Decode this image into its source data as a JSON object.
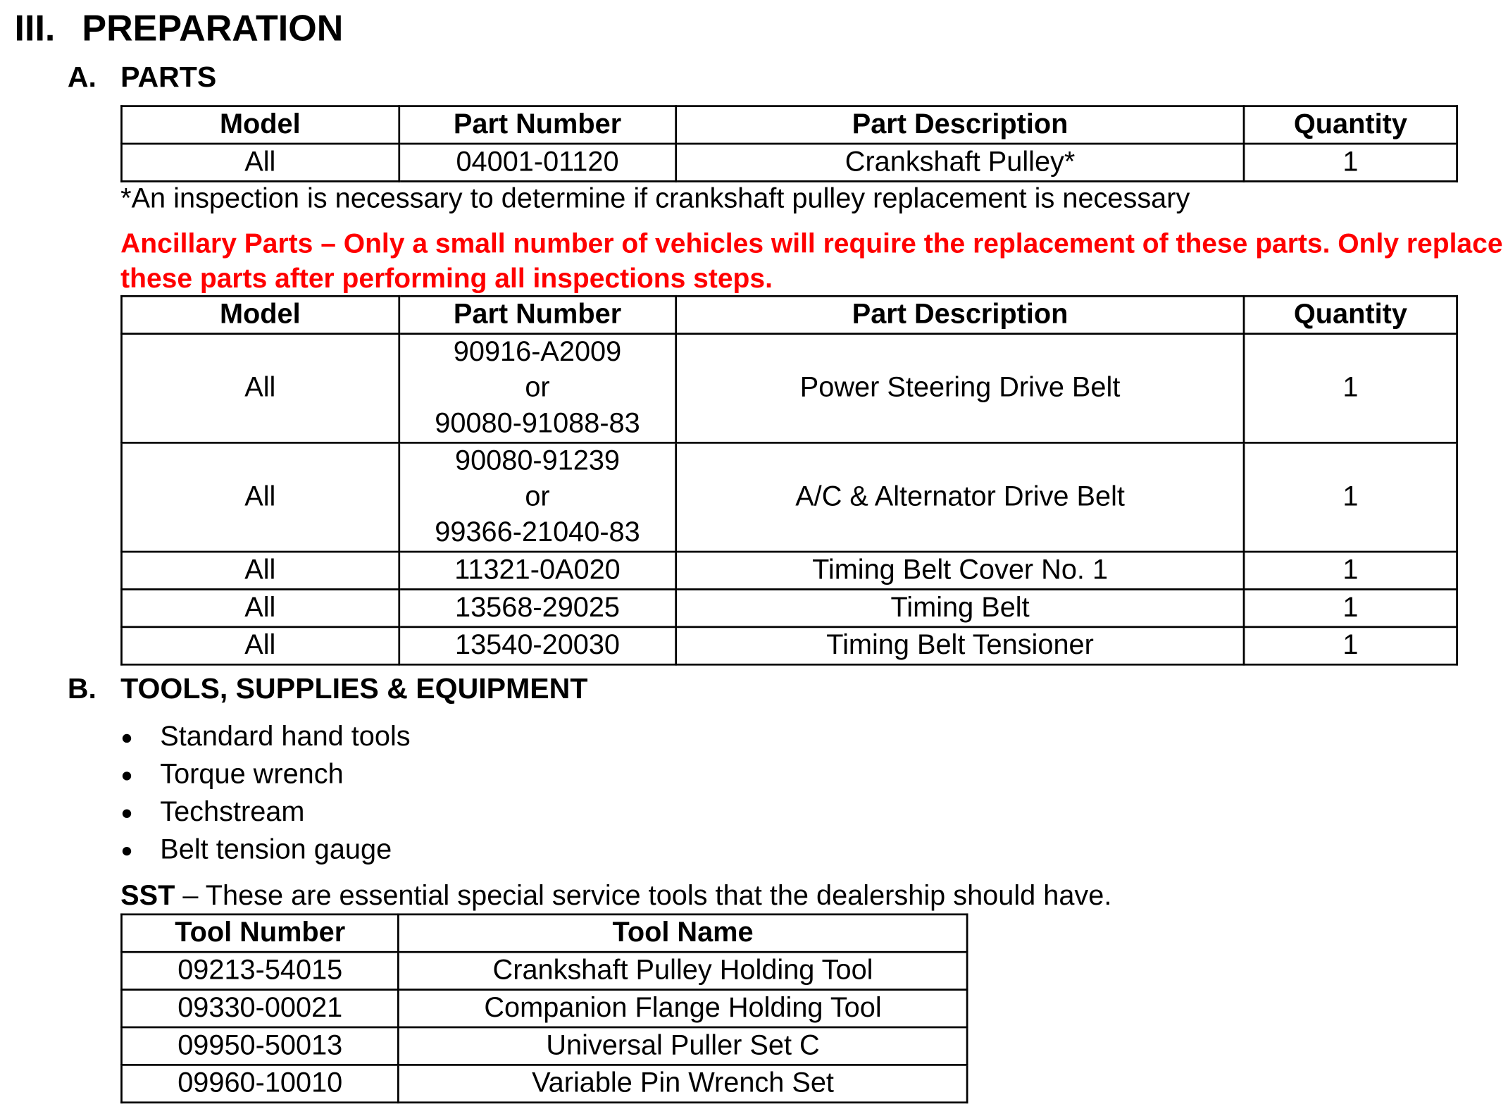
{
  "section": {
    "numeral": "III.",
    "title": "PREPARATION"
  },
  "parts": {
    "letter": "A.",
    "title": "PARTS",
    "headers": [
      "Model",
      "Part Number",
      "Part Description",
      "Quantity"
    ],
    "rows": [
      {
        "model": "All",
        "part_number": "04001-01120",
        "description": "Crankshaft Pulley*",
        "quantity": "1"
      }
    ],
    "footnote": "*An inspection is necessary to determine if crankshaft pulley replacement is necessary",
    "ancillary_warning": "Ancillary Parts – Only a small number of vehicles will require the replacement of these parts. Only replace these parts after performing all inspections steps.",
    "warning_color": "#ff0000",
    "ancillary_headers": [
      "Model",
      "Part Number",
      "Part Description",
      "Quantity"
    ],
    "ancillary_rows": [
      {
        "model": "All",
        "part_number": [
          "90916-A2009",
          "or",
          "90080-91088-83"
        ],
        "description": "Power Steering Drive Belt",
        "quantity": "1"
      },
      {
        "model": "All",
        "part_number": [
          "90080-91239",
          "or",
          "99366-21040-83"
        ],
        "description": "A/C & Alternator Drive Belt",
        "quantity": "1"
      },
      {
        "model": "All",
        "part_number": [
          "11321-0A020"
        ],
        "description": "Timing Belt Cover No. 1",
        "quantity": "1"
      },
      {
        "model": "All",
        "part_number": [
          "13568-29025"
        ],
        "description": "Timing Belt",
        "quantity": "1"
      },
      {
        "model": "All",
        "part_number": [
          "13540-20030"
        ],
        "description": "Timing Belt Tensioner",
        "quantity": "1"
      }
    ]
  },
  "tools": {
    "letter": "B.",
    "title": "TOOLS, SUPPLIES & EQUIPMENT",
    "items": [
      "Standard hand tools",
      "Torque wrench",
      "Techstream",
      "Belt tension gauge"
    ],
    "sst_label": "SST",
    "sst_text": " – These are essential special service tools that the dealership should have.",
    "sst_headers": [
      "Tool Number",
      "Tool Name"
    ],
    "sst_rows": [
      {
        "number": "09213-54015",
        "name": "Crankshaft Pulley Holding Tool"
      },
      {
        "number": "09330-00021",
        "name": "Companion Flange Holding Tool"
      },
      {
        "number": "09950-50013",
        "name": "Universal Puller Set C"
      },
      {
        "number": "09960-10010",
        "name": "Variable Pin Wrench Set"
      }
    ]
  }
}
